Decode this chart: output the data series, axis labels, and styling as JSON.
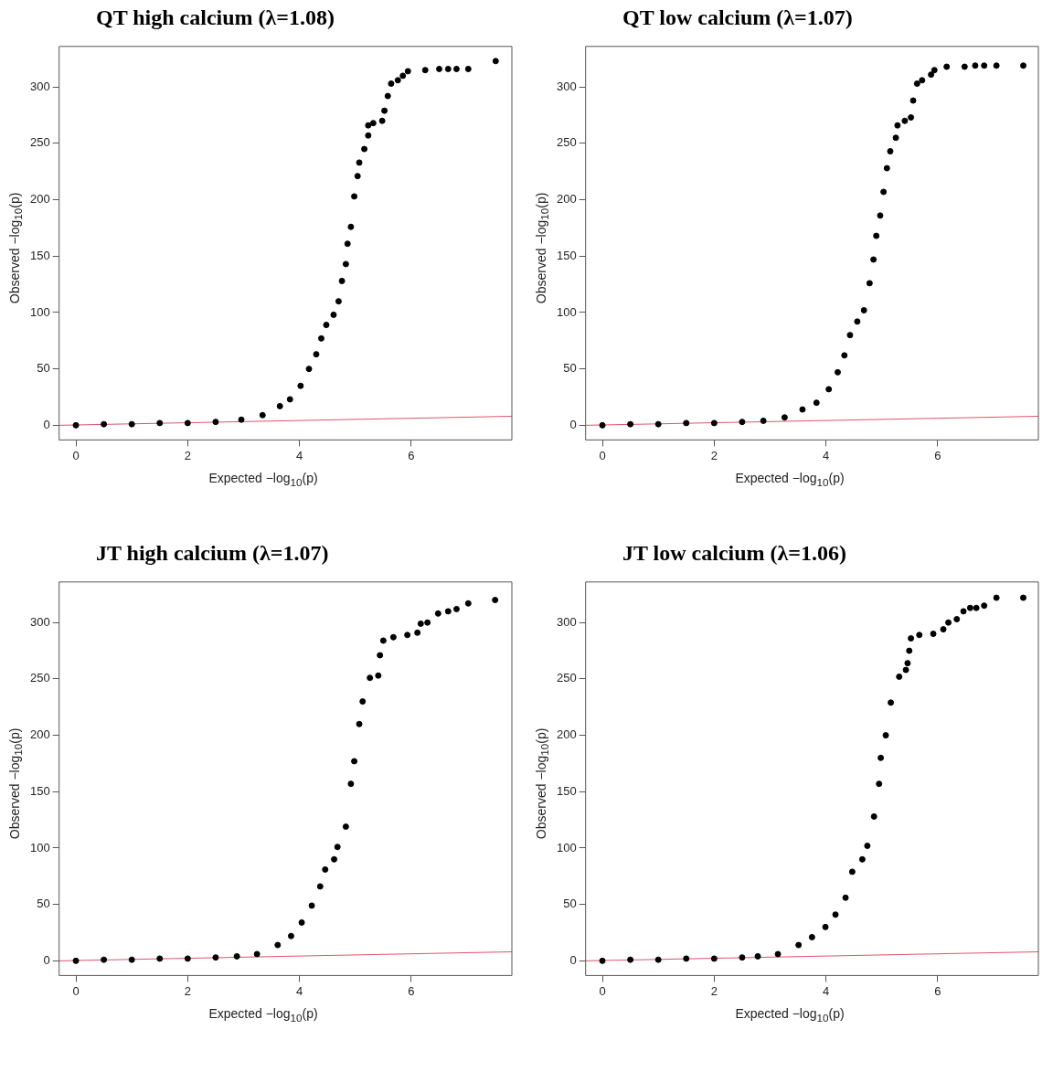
{
  "chart_data": [
    {
      "type": "scatter",
      "title": "QT high calcium (λ=1.08)",
      "xlabel": "Expected −log$_{10}$(p)",
      "ylabel": "Observed −log$_{10}$(p)",
      "xlim": [
        -0.3,
        7.8
      ],
      "ylim": [
        -13,
        336
      ],
      "xticks": [
        0,
        2,
        4,
        6
      ],
      "yticks": [
        0,
        50,
        100,
        150,
        200,
        250,
        300
      ],
      "grid": false,
      "legend": false,
      "series": [
        {
          "marker": "circle",
          "color": "#000000",
          "x": [
            0,
            0.5,
            1,
            1.5,
            2,
            2.5,
            2.96,
            3.34,
            3.65,
            3.83,
            4.02,
            4.17,
            4.3,
            4.39,
            4.48,
            4.61,
            4.7,
            4.76,
            4.83,
            4.86,
            4.92,
            4.98,
            5.04,
            5.07,
            5.16,
            5.23,
            5.23,
            5.32,
            5.48,
            5.52,
            5.58,
            5.64,
            5.76,
            5.85,
            5.94,
            6.25,
            6.5,
            6.66,
            6.81,
            7.02,
            7.51
          ],
          "values": [
            0,
            1,
            1,
            2,
            2,
            3,
            5,
            9,
            17,
            23,
            35,
            50,
            63,
            77,
            89,
            98,
            110,
            128,
            143,
            161,
            176,
            203,
            221,
            233,
            245,
            257,
            266,
            268,
            270,
            279,
            292,
            303,
            306,
            310,
            314,
            315,
            316,
            316,
            316,
            316,
            323
          ]
        },
        {
          "type": "line",
          "marker": "none",
          "color": "#df536b",
          "x": [
            -0.3,
            7.8
          ],
          "values": [
            0,
            8
          ]
        }
      ]
    },
    {
      "type": "scatter",
      "title": "QT low calcium (λ=1.07)",
      "xlabel": "Expected −log$_{10}$(p)",
      "ylabel": "Observed −log$_{10}$(p)",
      "xlim": [
        -0.3,
        7.8
      ],
      "ylim": [
        -13,
        336
      ],
      "xticks": [
        0,
        2,
        4,
        6
      ],
      "yticks": [
        0,
        50,
        100,
        150,
        200,
        250,
        300
      ],
      "grid": false,
      "legend": false,
      "series": [
        {
          "marker": "circle",
          "color": "#000000",
          "x": [
            0,
            0.5,
            1,
            1.5,
            2,
            2.5,
            2.88,
            3.26,
            3.58,
            3.83,
            4.05,
            4.21,
            4.33,
            4.43,
            4.56,
            4.68,
            4.78,
            4.85,
            4.9,
            4.97,
            5.03,
            5.09,
            5.15,
            5.25,
            5.28,
            5.41,
            5.52,
            5.56,
            5.63,
            5.72,
            5.88,
            5.94,
            6.16,
            6.48,
            6.67,
            6.83,
            7.05,
            7.53
          ],
          "values": [
            0,
            1,
            1,
            2,
            2,
            3,
            4,
            7,
            14,
            20,
            32,
            47,
            62,
            80,
            92,
            102,
            126,
            147,
            168,
            186,
            207,
            228,
            243,
            255,
            266,
            270,
            273,
            288,
            303,
            306,
            311,
            315,
            318,
            318,
            319,
            319,
            319,
            319
          ]
        },
        {
          "type": "line",
          "marker": "none",
          "color": "#df536b",
          "x": [
            -0.3,
            7.8
          ],
          "values": [
            0,
            8
          ]
        }
      ]
    },
    {
      "type": "scatter",
      "title": "JT high calcium (λ=1.07)",
      "xlabel": "Expected −log$_{10}$(p)",
      "ylabel": "Observed −log$_{10}$(p)",
      "xlim": [
        -0.3,
        7.8
      ],
      "ylim": [
        -13,
        336
      ],
      "xticks": [
        0,
        2,
        4,
        6
      ],
      "yticks": [
        0,
        50,
        100,
        150,
        200,
        250,
        300
      ],
      "grid": false,
      "legend": false,
      "series": [
        {
          "marker": "circle",
          "color": "#000000",
          "x": [
            0,
            0.5,
            1,
            1.5,
            2,
            2.5,
            2.88,
            3.24,
            3.61,
            3.85,
            4.04,
            4.22,
            4.37,
            4.46,
            4.62,
            4.68,
            4.83,
            4.92,
            4.98,
            5.07,
            5.13,
            5.26,
            5.41,
            5.44,
            5.5,
            5.68,
            5.93,
            6.11,
            6.17,
            6.29,
            6.48,
            6.66,
            6.81,
            7.02,
            7.5
          ],
          "values": [
            0,
            1,
            1,
            2,
            2,
            3,
            4,
            6,
            14,
            22,
            34,
            49,
            66,
            81,
            90,
            101,
            119,
            157,
            177,
            210,
            230,
            251,
            253,
            271,
            284,
            287,
            289,
            291,
            299,
            300,
            308,
            310,
            312,
            317,
            320
          ]
        },
        {
          "type": "line",
          "marker": "none",
          "color": "#df536b",
          "x": [
            -0.3,
            7.8
          ],
          "values": [
            0,
            8
          ]
        }
      ]
    },
    {
      "type": "scatter",
      "title": "JT low calcium (λ=1.06)",
      "xlabel": "Expected −log$_{10}$(p)",
      "ylabel": "Observed −log$_{10}$(p)",
      "xlim": [
        -0.3,
        7.8
      ],
      "ylim": [
        -13,
        336
      ],
      "xticks": [
        0,
        2,
        4,
        6
      ],
      "yticks": [
        0,
        50,
        100,
        150,
        200,
        250,
        300
      ],
      "grid": false,
      "legend": false,
      "series": [
        {
          "marker": "circle",
          "color": "#000000",
          "x": [
            0,
            0.5,
            1,
            1.5,
            2,
            2.5,
            2.78,
            3.14,
            3.51,
            3.75,
            3.99,
            4.17,
            4.35,
            4.47,
            4.65,
            4.74,
            4.86,
            4.95,
            4.98,
            5.07,
            5.16,
            5.31,
            5.43,
            5.46,
            5.49,
            5.52,
            5.67,
            5.92,
            6.1,
            6.19,
            6.34,
            6.46,
            6.58,
            6.69,
            6.83,
            7.05,
            7.53
          ],
          "values": [
            0,
            1,
            1,
            2,
            2,
            3,
            4,
            6,
            14,
            21,
            30,
            41,
            56,
            79,
            90,
            102,
            128,
            157,
            180,
            200,
            229,
            252,
            258,
            264,
            275,
            286,
            289,
            290,
            294,
            300,
            303,
            310,
            313,
            313,
            315,
            322,
            322
          ]
        },
        {
          "type": "line",
          "marker": "none",
          "color": "#df536b",
          "x": [
            -0.3,
            7.8
          ],
          "values": [
            0,
            8
          ]
        }
      ]
    }
  ]
}
